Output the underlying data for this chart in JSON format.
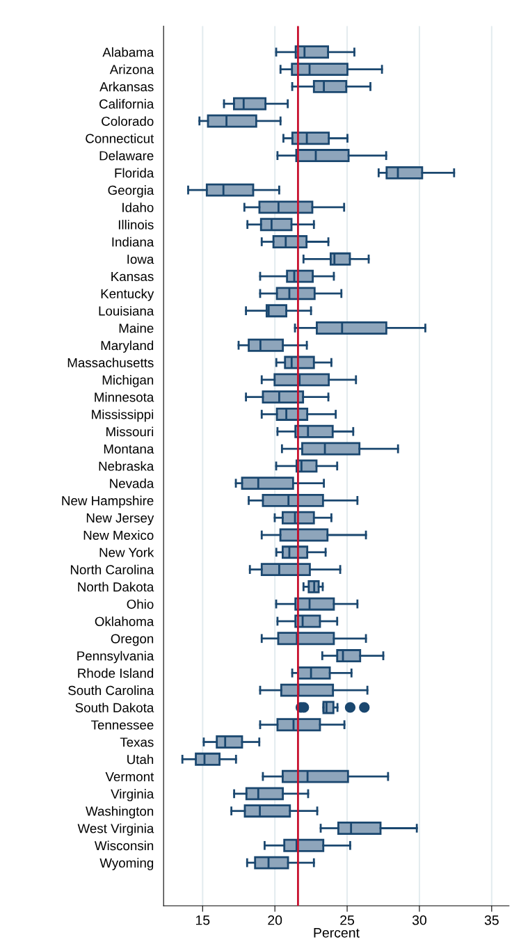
{
  "chart_data": {
    "type": "box",
    "orientation": "horizontal",
    "xlabel": "Percent",
    "categories": [
      "Alabama",
      "Arizona",
      "Arkansas",
      "California",
      "Colorado",
      "Connecticut",
      "Delaware",
      "Florida",
      "Georgia",
      "Idaho",
      "Illinois",
      "Indiana",
      "Iowa",
      "Kansas",
      "Kentucky",
      "Louisiana",
      "Maine",
      "Maryland",
      "Massachusetts",
      "Michigan",
      "Minnesota",
      "Mississippi",
      "Missouri",
      "Montana",
      "Nebraska",
      "Nevada",
      "New Hampshire",
      "New Jersey",
      "New Mexico",
      "New York",
      "North Carolina",
      "North Dakota",
      "Ohio",
      "Oklahoma",
      "Oregon",
      "Pennsylvania",
      "Rhode Island",
      "South Carolina",
      "South Dakota",
      "Tennessee",
      "Texas",
      "Utah",
      "Vermont",
      "Virginia",
      "Washington",
      "West Virginia",
      "Wisconsin",
      "Wyoming"
    ],
    "series": [
      {
        "color": "#8ea5bb",
        "boxes": [
          {
            "low": 20.09,
            "q1": 21.44,
            "median": 22.05,
            "q3": 23.68,
            "high": 25.5
          },
          {
            "low": 20.39,
            "q1": 21.18,
            "median": 22.4,
            "q3": 25.02,
            "high": 27.41
          },
          {
            "low": 21.2,
            "q1": 22.7,
            "median": 23.39,
            "q3": 24.94,
            "high": 26.61
          },
          {
            "low": 16.48,
            "q1": 17.17,
            "median": 17.84,
            "q3": 19.35,
            "high": 20.89
          },
          {
            "low": 14.78,
            "q1": 15.37,
            "median": 16.65,
            "q3": 18.71,
            "high": 20.39
          },
          {
            "low": 20.59,
            "q1": 21.21,
            "median": 22.21,
            "q3": 23.73,
            "high": 25.02
          },
          {
            "low": 20.18,
            "q1": 21.48,
            "median": 22.83,
            "q3": 25.1,
            "high": 27.7
          },
          {
            "low": 27.18,
            "q1": 27.73,
            "median": 28.51,
            "q3": 30.19,
            "high": 32.4
          },
          {
            "low": 14.0,
            "q1": 15.29,
            "median": 16.44,
            "q3": 18.5,
            "high": 20.3
          },
          {
            "low": 17.89,
            "q1": 18.93,
            "median": 20.25,
            "q3": 22.59,
            "high": 24.79
          },
          {
            "low": 18.1,
            "q1": 19.04,
            "median": 19.77,
            "q3": 21.15,
            "high": 22.7
          },
          {
            "low": 19.09,
            "q1": 19.9,
            "median": 20.75,
            "q3": 22.19,
            "high": 23.7
          },
          {
            "low": 21.98,
            "q1": 23.86,
            "median": 24.12,
            "q3": 25.19,
            "high": 26.49
          },
          {
            "low": 18.98,
            "q1": 20.84,
            "median": 21.34,
            "q3": 22.62,
            "high": 24.08
          },
          {
            "low": 18.98,
            "q1": 20.14,
            "median": 21.0,
            "q3": 22.75,
            "high": 24.6
          },
          {
            "low": 18.0,
            "q1": 19.43,
            "median": 19.57,
            "q3": 20.79,
            "high": 22.5
          },
          {
            "low": 21.39,
            "q1": 22.9,
            "median": 24.65,
            "q3": 27.71,
            "high": 30.41
          },
          {
            "low": 17.49,
            "q1": 18.19,
            "median": 19.0,
            "q3": 20.55,
            "high": 22.21
          },
          {
            "low": 20.1,
            "q1": 20.7,
            "median": 21.16,
            "q3": 22.7,
            "high": 23.91
          },
          {
            "low": 19.09,
            "q1": 19.98,
            "median": 21.71,
            "q3": 23.73,
            "high": 25.61
          },
          {
            "low": 18.0,
            "q1": 19.17,
            "median": 20.3,
            "q3": 21.95,
            "high": 23.7
          },
          {
            "low": 19.09,
            "q1": 20.14,
            "median": 20.79,
            "q3": 22.24,
            "high": 24.21
          },
          {
            "low": 20.18,
            "q1": 21.42,
            "median": 22.29,
            "q3": 24.0,
            "high": 25.42
          },
          {
            "low": 20.49,
            "q1": 21.89,
            "median": 23.46,
            "q3": 25.85,
            "high": 28.52
          },
          {
            "low": 20.09,
            "q1": 21.5,
            "median": 21.84,
            "q3": 22.88,
            "high": 24.31
          },
          {
            "low": 17.3,
            "q1": 17.73,
            "median": 18.85,
            "q3": 21.26,
            "high": 23.39
          },
          {
            "low": 18.19,
            "q1": 19.17,
            "median": 20.94,
            "q3": 23.33,
            "high": 25.71
          },
          {
            "low": 19.99,
            "q1": 20.54,
            "median": 21.39,
            "q3": 22.7,
            "high": 23.91
          },
          {
            "low": 19.09,
            "q1": 20.38,
            "median": 21.6,
            "q3": 23.64,
            "high": 26.3
          },
          {
            "low": 20.1,
            "q1": 20.54,
            "median": 21.0,
            "q3": 22.24,
            "high": 23.51
          },
          {
            "low": 18.27,
            "q1": 19.09,
            "median": 20.3,
            "q3": 22.42,
            "high": 24.52
          },
          {
            "low": 21.98,
            "q1": 22.34,
            "median": 22.72,
            "q3": 23.03,
            "high": 23.31
          },
          {
            "low": 20.09,
            "q1": 21.42,
            "median": 22.4,
            "q3": 24.08,
            "high": 25.71
          },
          {
            "low": 20.18,
            "q1": 21.42,
            "median": 21.92,
            "q3": 23.12,
            "high": 24.31
          },
          {
            "low": 19.09,
            "q1": 20.23,
            "median": 21.52,
            "q3": 24.08,
            "high": 26.3
          },
          {
            "low": 23.28,
            "q1": 24.31,
            "median": 24.71,
            "q3": 25.9,
            "high": 27.5
          },
          {
            "low": 21.2,
            "q1": 21.6,
            "median": 22.5,
            "q3": 23.8,
            "high": 25.3
          },
          {
            "low": 18.98,
            "q1": 20.44,
            "median": 21.63,
            "q3": 24.02,
            "high": 26.4
          },
          {
            "low": 23.36,
            "q1": 23.36,
            "median": 23.57,
            "q3": 24.05,
            "high": 24.33,
            "outliers": [
              21.8,
              22.0,
              25.21,
              26.19
            ]
          },
          {
            "low": 18.98,
            "q1": 20.18,
            "median": 21.29,
            "q3": 23.12,
            "high": 24.81
          },
          {
            "low": 15.08,
            "q1": 15.98,
            "median": 16.56,
            "q3": 17.73,
            "high": 18.92
          },
          {
            "low": 13.6,
            "q1": 14.53,
            "median": 15.13,
            "q3": 16.17,
            "high": 17.31
          },
          {
            "low": 19.17,
            "q1": 20.54,
            "median": 22.26,
            "q3": 25.06,
            "high": 27.83
          },
          {
            "low": 17.18,
            "q1": 18.03,
            "median": 18.85,
            "q3": 20.55,
            "high": 22.3
          },
          {
            "low": 16.99,
            "q1": 17.92,
            "median": 18.96,
            "q3": 21.04,
            "high": 22.93
          },
          {
            "low": 23.17,
            "q1": 24.39,
            "median": 25.27,
            "q3": 27.31,
            "high": 29.82
          },
          {
            "low": 19.29,
            "q1": 20.65,
            "median": 21.5,
            "q3": 23.35,
            "high": 25.21
          },
          {
            "low": 18.08,
            "q1": 18.63,
            "median": 19.56,
            "q3": 20.91,
            "high": 22.7
          }
        ]
      }
    ],
    "xlim": [
      12.3,
      36.2
    ],
    "xticks": [
      15,
      20,
      25,
      30,
      35
    ],
    "grid": "x",
    "ref_lines": [
      {
        "axis": "x",
        "value": 21.6,
        "color": "#c8102e"
      }
    ]
  }
}
